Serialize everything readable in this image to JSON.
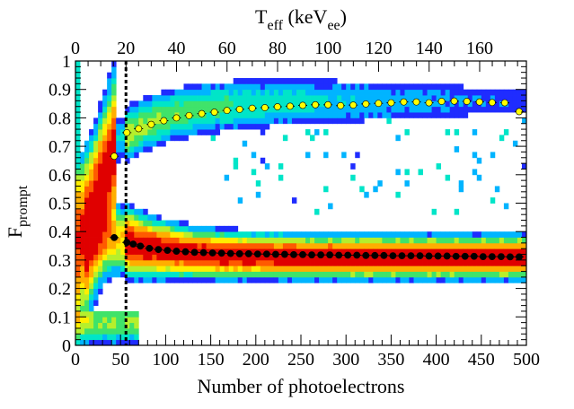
{
  "chart_data": {
    "type": "heatmap",
    "title": "",
    "xlabel": "Number of photoelectrons",
    "ylabel": "F",
    "ylabel_sub": "prompt",
    "top_xlabel": "T",
    "top_xlabel_sub1": "eff",
    "top_xlabel_mid": " (keV",
    "top_xlabel_sub2": "ee",
    "top_xlabel_end": ")",
    "xlim": [
      0,
      500
    ],
    "ylim": [
      0,
      1
    ],
    "top_xlim": [
      0,
      178.5
    ],
    "x_ticks": [
      "0",
      "50",
      "100",
      "150",
      "200",
      "250",
      "300",
      "350",
      "400",
      "450",
      "500"
    ],
    "y_ticks": [
      "0",
      "0.1",
      "0.2",
      "0.3",
      "0.4",
      "0.5",
      "0.6",
      "0.7",
      "0.8",
      "0.9",
      "1"
    ],
    "top_ticks": [
      "0",
      "20",
      "40",
      "60",
      "80",
      "100",
      "120",
      "140",
      "160"
    ],
    "threshold_line_x": 56,
    "colormap": [
      "#7a00d8",
      "#1f2cff",
      "#00b4ff",
      "#00e5c8",
      "#3fe36a",
      "#b6ef2c",
      "#ffee00",
      "#ffae00",
      "#ff5a00",
      "#e00000"
    ],
    "series": [
      {
        "marker_color": "#000000",
        "x": [
          43,
          57,
          64,
          72,
          82,
          92,
          102,
          112,
          122,
          132,
          142,
          152,
          162,
          172,
          182,
          192,
          202,
          212,
          222,
          232,
          242,
          252,
          262,
          272,
          282,
          292,
          302,
          312,
          322,
          332,
          342,
          352,
          362,
          372,
          382,
          392,
          402,
          412,
          422,
          432,
          442,
          452,
          462,
          472,
          482,
          492
        ],
        "y": [
          0.379,
          0.362,
          0.356,
          0.349,
          0.341,
          0.337,
          0.334,
          0.331,
          0.329,
          0.327,
          0.326,
          0.325,
          0.324,
          0.323,
          0.322,
          0.322,
          0.321,
          0.321,
          0.32,
          0.32,
          0.319,
          0.319,
          0.318,
          0.318,
          0.318,
          0.317,
          0.317,
          0.317,
          0.316,
          0.316,
          0.316,
          0.315,
          0.315,
          0.315,
          0.315,
          0.314,
          0.314,
          0.314,
          0.313,
          0.313,
          0.313,
          0.312,
          0.312,
          0.312,
          0.311,
          0.311
        ]
      },
      {
        "marker_color": "#ffff00",
        "x": [
          43,
          57,
          70,
          84,
          98,
          112,
          126,
          140,
          154,
          168,
          182,
          196,
          210,
          224,
          238,
          252,
          266,
          280,
          294,
          308,
          322,
          336,
          350,
          364,
          378,
          392,
          406,
          420,
          434,
          448,
          462,
          476,
          492
        ],
        "y": [
          0.665,
          0.748,
          0.762,
          0.777,
          0.79,
          0.8,
          0.808,
          0.815,
          0.82,
          0.826,
          0.83,
          0.834,
          0.836,
          0.839,
          0.841,
          0.844,
          0.846,
          0.846,
          0.843,
          0.845,
          0.849,
          0.851,
          0.853,
          0.856,
          0.856,
          0.853,
          0.858,
          0.859,
          0.858,
          0.856,
          0.854,
          0.853,
          0.822
        ]
      }
    ]
  }
}
